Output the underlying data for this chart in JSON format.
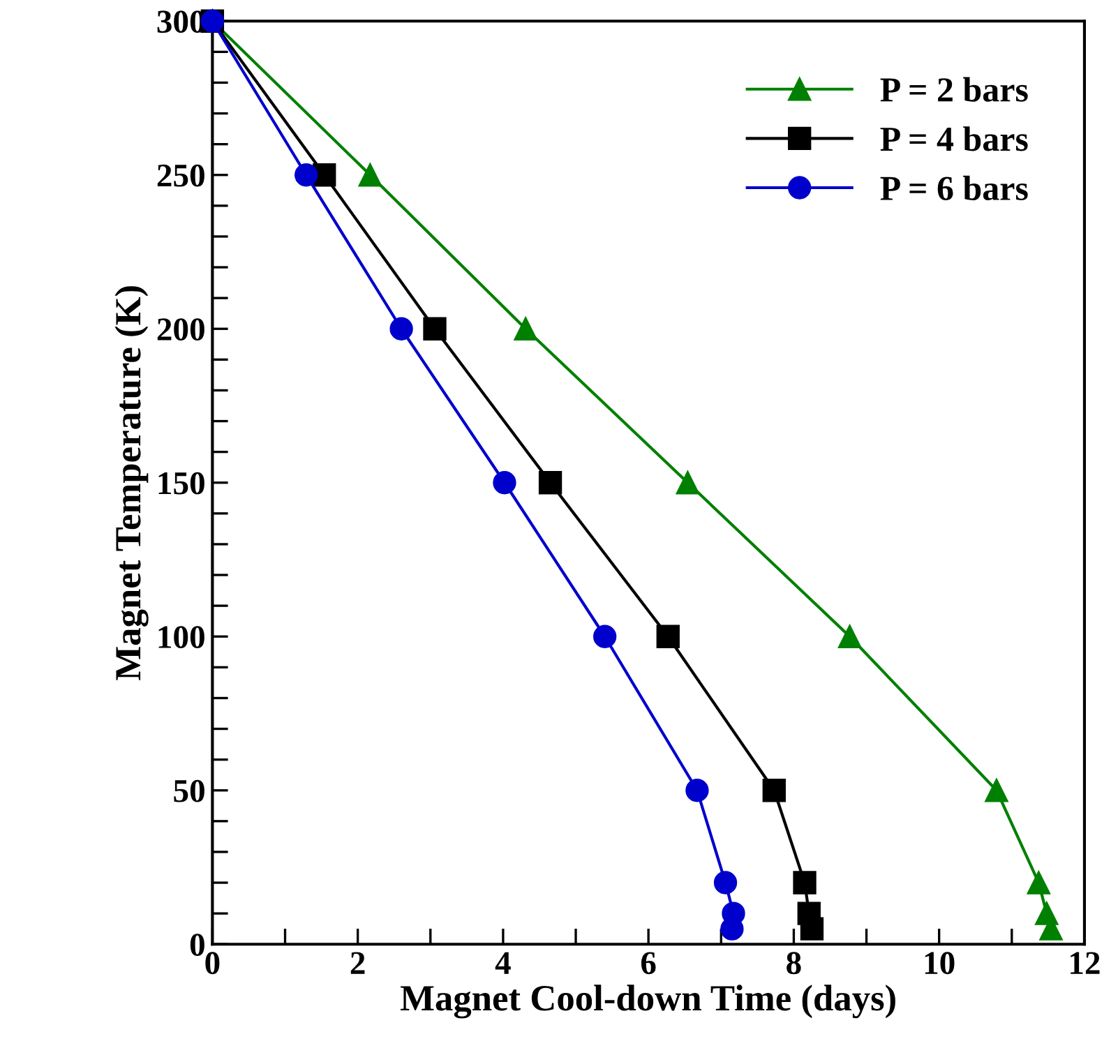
{
  "chart_data": {
    "type": "line",
    "xlabel": "Magnet Cool-down Time (days)",
    "ylabel": "Magnet Temperature (K)",
    "xlim": [
      0,
      12
    ],
    "ylim": [
      0,
      300
    ],
    "xticks": [
      0,
      {
        "value": 1,
        "label": null
      },
      2,
      {
        "value": 3,
        "label": null
      },
      4,
      {
        "value": 5,
        "label": null
      },
      6,
      {
        "value": 7,
        "label": null
      },
      8,
      {
        "value": 9,
        "label": null
      },
      10,
      {
        "value": 11,
        "label": null
      },
      12
    ],
    "yticks": [
      0,
      {
        "value": 10,
        "label": null
      },
      {
        "value": 20,
        "label": null
      },
      {
        "value": 30,
        "label": null
      },
      {
        "value": 40,
        "label": null
      },
      50,
      {
        "value": 60,
        "label": null
      },
      {
        "value": 70,
        "label": null
      },
      {
        "value": 80,
        "label": null
      },
      {
        "value": 90,
        "label": null
      },
      100,
      {
        "value": 110,
        "label": null
      },
      {
        "value": 120,
        "label": null
      },
      {
        "value": 130,
        "label": null
      },
      {
        "value": 140,
        "label": null
      },
      150,
      {
        "value": 160,
        "label": null
      },
      {
        "value": 170,
        "label": null
      },
      {
        "value": 180,
        "label": null
      },
      {
        "value": 190,
        "label": null
      },
      200,
      {
        "value": 210,
        "label": null
      },
      {
        "value": 220,
        "label": null
      },
      {
        "value": 230,
        "label": null
      },
      {
        "value": 240,
        "label": null
      },
      250,
      {
        "value": 260,
        "label": null
      },
      {
        "value": 270,
        "label": null
      },
      {
        "value": 280,
        "label": null
      },
      {
        "value": 290,
        "label": null
      },
      300
    ],
    "grid": false,
    "legend": "top right",
    "line_style": "solid",
    "series": [
      {
        "name": "P = 2 bars",
        "color": "#008000",
        "marker": "triangle",
        "x": [
          0,
          2.17,
          4.31,
          6.54,
          8.77,
          10.79,
          11.37,
          11.48,
          11.54
        ],
        "values": [
          300,
          250,
          200,
          150,
          100,
          50,
          20,
          10,
          5
        ]
      },
      {
        "name": "P = 4 bars",
        "color": "#000000",
        "marker": "square",
        "x": [
          0,
          1.54,
          3.06,
          4.65,
          6.27,
          7.73,
          8.15,
          8.21,
          8.25
        ],
        "values": [
          300,
          250,
          200,
          150,
          100,
          50,
          20,
          10,
          5
        ]
      },
      {
        "name": "P = 6 bars",
        "color": "#0000cc",
        "marker": "circle",
        "x": [
          0,
          1.29,
          2.6,
          4.02,
          5.4,
          6.67,
          7.06,
          7.17,
          7.15
        ],
        "values": [
          300,
          250,
          200,
          150,
          100,
          50,
          20,
          10,
          5
        ]
      }
    ]
  }
}
